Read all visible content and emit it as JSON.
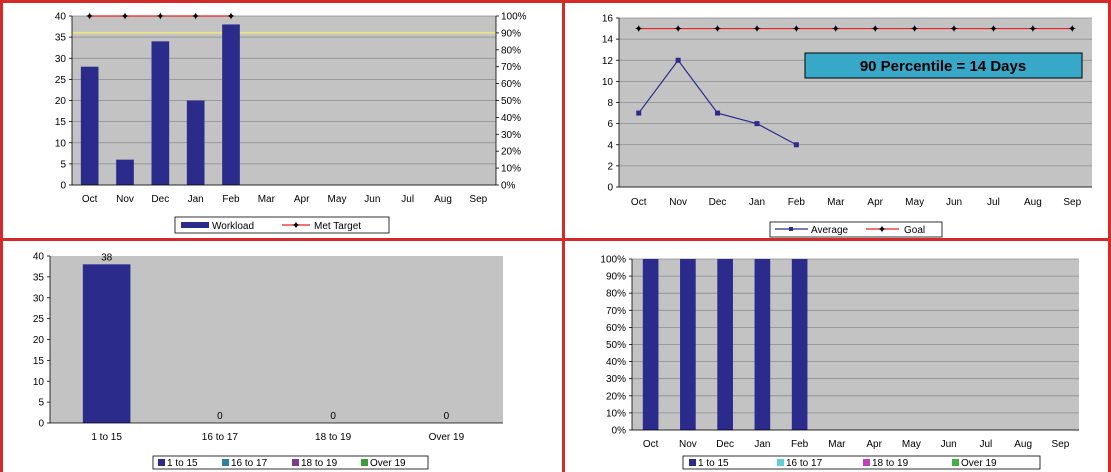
{
  "theme": {
    "divider": "#d42a2a",
    "plot_bg": "#c3c3c3",
    "grid": "#8c8c8c",
    "bar": "#2b2b8c",
    "goal": "#ee2020",
    "target_line": "#e8e08a",
    "anno_bg": "#38a8c8"
  },
  "chart_data": [
    {
      "type": "bar",
      "categories": [
        "Oct",
        "Nov",
        "Dec",
        "Jan",
        "Feb",
        "Mar",
        "Apr",
        "May",
        "Jun",
        "Jul",
        "Aug",
        "Sep"
      ],
      "series": [
        {
          "name": "Workload",
          "kind": "bar",
          "axis": "left",
          "values": [
            28,
            6,
            34,
            20,
            38,
            null,
            null,
            null,
            null,
            null,
            null,
            null
          ]
        },
        {
          "name": "Met Target",
          "kind": "line",
          "axis": "right",
          "values": [
            100,
            100,
            100,
            100,
            100,
            null,
            null,
            null,
            null,
            null,
            null,
            null
          ]
        }
      ],
      "reference_line": {
        "axis": "right",
        "value": 90
      },
      "ylim": [
        0,
        40
      ],
      "yticks": [
        0,
        5,
        10,
        15,
        20,
        25,
        30,
        35,
        40
      ],
      "y2lim": [
        0,
        100
      ],
      "y2ticks": [
        "0%",
        "10%",
        "20%",
        "30%",
        "40%",
        "50%",
        "60%",
        "70%",
        "80%",
        "90%",
        "100%"
      ],
      "grid": true,
      "legend": {
        "position": "bottom",
        "items": [
          "Workload",
          "Met Target"
        ]
      }
    },
    {
      "type": "line",
      "categories": [
        "Oct",
        "Nov",
        "Dec",
        "Jan",
        "Feb",
        "Mar",
        "Apr",
        "May",
        "Jun",
        "Jul",
        "Aug",
        "Sep"
      ],
      "series": [
        {
          "name": "Average",
          "values": [
            7,
            12,
            7,
            6,
            4,
            null,
            null,
            null,
            null,
            null,
            null,
            null
          ]
        },
        {
          "name": "Goal",
          "values": [
            15,
            15,
            15,
            15,
            15,
            15,
            15,
            15,
            15,
            15,
            15,
            15
          ]
        }
      ],
      "ylim": [
        0,
        16
      ],
      "yticks": [
        0,
        2,
        4,
        6,
        8,
        10,
        12,
        14,
        16
      ],
      "grid": true,
      "annotation": "90 Percentile = 14 Days",
      "legend": {
        "position": "bottom",
        "items": [
          "Average",
          "Goal"
        ]
      }
    },
    {
      "type": "bar",
      "categories": [
        "1 to 15",
        "16 to 17",
        "18 to 19",
        "Over 19"
      ],
      "values": [
        38,
        0,
        0,
        0
      ],
      "data_labels": [
        "38",
        "0",
        "0",
        "0"
      ],
      "ylim": [
        0,
        40
      ],
      "yticks": [
        0,
        5,
        10,
        15,
        20,
        25,
        30,
        35,
        40
      ],
      "grid": false,
      "legend": {
        "position": "bottom",
        "items": [
          "1 to 15",
          "16 to 17",
          "18 to 19",
          "Over 19"
        ]
      }
    },
    {
      "type": "bar",
      "stacked": true,
      "categories": [
        "Oct",
        "Nov",
        "Dec",
        "Jan",
        "Feb",
        "Mar",
        "Apr",
        "May",
        "Jun",
        "Jul",
        "Aug",
        "Sep"
      ],
      "series": [
        {
          "name": "1 to 15",
          "values": [
            100,
            100,
            100,
            100,
            100,
            null,
            null,
            null,
            null,
            null,
            null,
            null
          ]
        },
        {
          "name": "16 to 17",
          "values": [
            0,
            0,
            0,
            0,
            0,
            null,
            null,
            null,
            null,
            null,
            null,
            null
          ]
        },
        {
          "name": "18 to 19",
          "values": [
            0,
            0,
            0,
            0,
            0,
            null,
            null,
            null,
            null,
            null,
            null,
            null
          ]
        },
        {
          "name": "Over 19",
          "values": [
            0,
            0,
            0,
            0,
            0,
            null,
            null,
            null,
            null,
            null,
            null,
            null
          ]
        }
      ],
      "ylim": [
        0,
        100
      ],
      "yticks": [
        "0%",
        "10%",
        "20%",
        "30%",
        "40%",
        "50%",
        "60%",
        "70%",
        "80%",
        "90%",
        "100%"
      ],
      "grid": true,
      "legend": {
        "position": "bottom",
        "items": [
          "1 to 15",
          "16 to 17",
          "18 to 19",
          "Over 19"
        ]
      }
    }
  ],
  "legend_colors": {
    "workload": "#2b2b8c",
    "met_target": "#ee2020",
    "average": "#2b2b8c",
    "goal": "#ee2020",
    "bucket_1_to_15": "#2b2b8c",
    "bucket_16_to_17": "#2e7fa0",
    "bucket_18_to_19": "#7a3c8c",
    "bucket_over_19": "#3d9d3d",
    "pct_1_to_15": "#2b2b8c",
    "pct_16_to_17": "#5fd0d8",
    "pct_18_to_19": "#c040c0",
    "pct_over_19": "#40b040"
  }
}
